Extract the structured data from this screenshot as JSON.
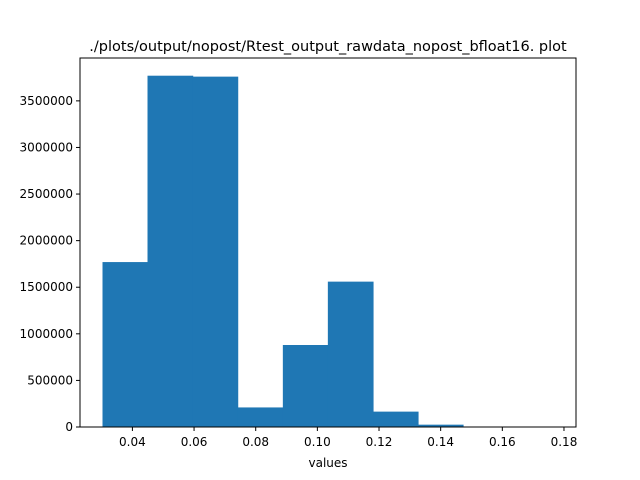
{
  "chart_data": {
    "type": "bar",
    "subtype": "histogram",
    "title": "./plots/output/nopost/Rtest_output_rawdata_nopost_bfloat16. plot",
    "xlabel": "values",
    "ylabel": "",
    "bin_edges": [
      0.0303,
      0.0449,
      0.0596,
      0.0742,
      0.0888,
      0.1034,
      0.1181,
      0.1327,
      0.1473,
      0.1619,
      0.1766
    ],
    "values": [
      1770000,
      3770000,
      3760000,
      210000,
      880000,
      1560000,
      165000,
      25000,
      3000,
      1000
    ],
    "xlim": [
      0.023,
      0.1839
    ],
    "ylim": [
      0,
      3960000
    ],
    "xticks": [
      0.04,
      0.06,
      0.08,
      0.1,
      0.12,
      0.14,
      0.16,
      0.18
    ],
    "xtick_labels": [
      "0.04",
      "0.06",
      "0.08",
      "0.10",
      "0.12",
      "0.14",
      "0.16",
      "0.18"
    ],
    "yticks": [
      0,
      500000,
      1000000,
      1500000,
      2000000,
      2500000,
      3000000,
      3500000
    ],
    "ytick_labels": [
      "0",
      "500000",
      "1000000",
      "1500000",
      "2000000",
      "2500000",
      "3000000",
      "3500000"
    ],
    "grid": false,
    "legend": "none",
    "bar_color": "#1f77b4"
  }
}
